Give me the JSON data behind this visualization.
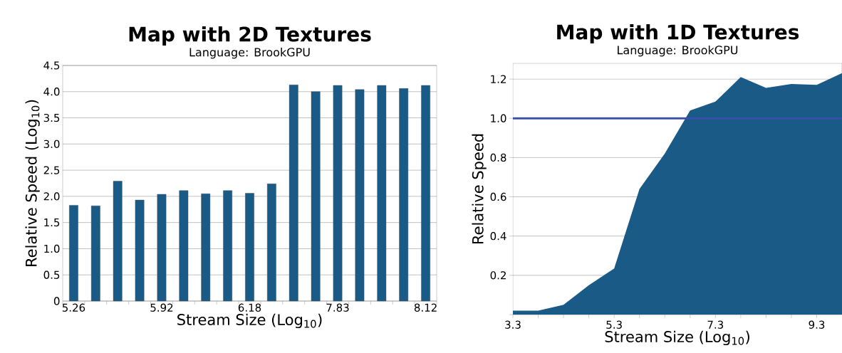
{
  "chart_data": [
    {
      "type": "bar",
      "title": "Map with 2D Textures",
      "subtitle": "Language: BrookGPU",
      "xlabel": "Stream Size (Log$_{10}$)",
      "ylabel": "Relative Speed (Log$_{10}$)",
      "categories": [
        "5.26",
        null,
        null,
        null,
        "5.92",
        null,
        null,
        null,
        "6.18",
        null,
        null,
        null,
        "7.83",
        null,
        null,
        null,
        "8.12"
      ],
      "series": [
        {
          "color": "#1a5a87",
          "values": [
            1.83,
            1.82,
            2.29,
            1.93,
            2.04,
            2.11,
            2.05,
            2.11,
            2.06,
            2.24,
            4.13,
            4.0,
            4.12,
            4.04,
            4.12,
            4.06,
            4.12
          ]
        }
      ],
      "ylim": [
        0,
        4.5
      ],
      "yticks": [
        {
          "value": 0,
          "label": "0"
        },
        {
          "value": 0.5,
          "label": "0.5"
        },
        {
          "value": 1,
          "label": "1.0"
        },
        {
          "value": 1.5,
          "label": "1.5"
        },
        {
          "value": 2,
          "label": "2.0"
        },
        {
          "value": 2.5,
          "label": "2.5"
        },
        {
          "value": 3,
          "label": "3.0"
        },
        {
          "value": 3.5,
          "label": "3.5"
        },
        {
          "value": 4,
          "label": "4.0"
        },
        {
          "value": 4.5,
          "label": "4.5"
        }
      ],
      "grid": "y"
    },
    {
      "type": "area",
      "title": "Map with 1D Textures",
      "subtitle": "Language: BrookGPU",
      "xlabel": "Stream Size (Log$_{10}$)",
      "ylabel": "Relative Speed",
      "x": [
        3.3,
        3.8,
        4.3,
        4.8,
        5.3,
        5.8,
        6.3,
        6.8,
        7.3,
        7.8,
        8.3,
        8.8,
        9.3,
        9.8
      ],
      "series": [
        {
          "color": "#1a5a87",
          "values": [
            0.02,
            0.02,
            0.05,
            0.15,
            0.235,
            0.64,
            0.82,
            1.04,
            1.085,
            1.21,
            1.155,
            1.175,
            1.17,
            1.23
          ]
        }
      ],
      "xlim": [
        3.3,
        9.8
      ],
      "xticks": [
        3.3,
        {
          "value": 3.8,
          "label": null
        },
        {
          "value": 4.3,
          "label": null
        },
        {
          "value": 4.8,
          "label": null
        },
        5.3,
        {
          "value": 5.8,
          "label": null
        },
        {
          "value": 6.3,
          "label": null
        },
        {
          "value": 6.8,
          "label": null
        },
        7.3,
        {
          "value": 7.8,
          "label": null
        },
        {
          "value": 8.3,
          "label": null
        },
        {
          "value": 8.8,
          "label": null
        },
        9.3
      ],
      "ylim": [
        0,
        1.28
      ],
      "yticks": [
        {
          "value": 0,
          "label": null
        },
        0.2,
        0.4,
        0.6,
        0.8,
        {
          "value": 1,
          "label": "1.0"
        },
        1.2
      ],
      "ref_lines": [
        {
          "axis": "y",
          "value": 1.0,
          "color": "#3a4fa8"
        }
      ],
      "grid": "y"
    }
  ]
}
